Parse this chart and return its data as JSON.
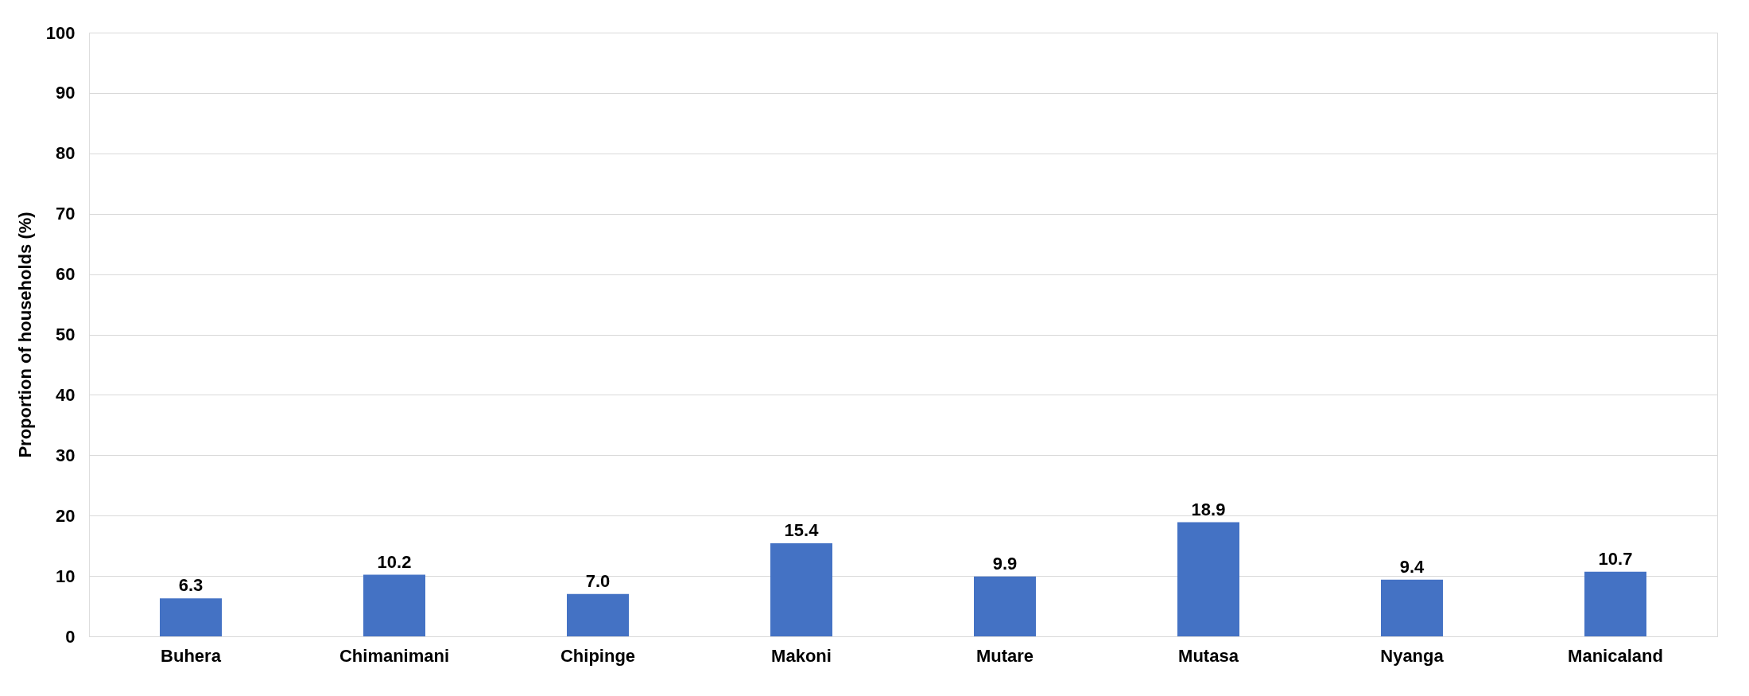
{
  "chart_data": {
    "type": "bar",
    "ylabel": "Proportion of households (%)",
    "categories": [
      "Buhera",
      "Chimanimani",
      "Chipinge",
      "Makoni",
      "Mutare",
      "Mutasa",
      "Nyanga",
      "Manicaland"
    ],
    "values": [
      6.3,
      10.2,
      7.0,
      15.4,
      9.9,
      18.9,
      9.4,
      10.7
    ],
    "color": "#4472c4",
    "ylim": [
      0,
      100
    ],
    "yticks": [
      0,
      10,
      20,
      30,
      40,
      50,
      60,
      70,
      80,
      90,
      100
    ],
    "value_labels": [
      "6.3",
      "10.2",
      "7.0",
      "15.4",
      "9.9",
      "18.9",
      "9.4",
      "10.7"
    ],
    "grid": "y"
  }
}
